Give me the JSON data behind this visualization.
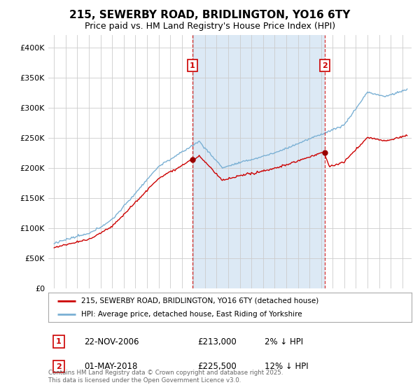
{
  "title": "215, SEWERBY ROAD, BRIDLINGTON, YO16 6TY",
  "subtitle": "Price paid vs. HM Land Registry's House Price Index (HPI)",
  "ylim": [
    0,
    420000
  ],
  "yticks": [
    0,
    50000,
    100000,
    150000,
    200000,
    250000,
    300000,
    350000,
    400000
  ],
  "ytick_labels": [
    "£0",
    "£50K",
    "£100K",
    "£150K",
    "£200K",
    "£250K",
    "£300K",
    "£350K",
    "£400K"
  ],
  "background_color": "#ffffff",
  "plot_bg_color": "#ffffff",
  "shade_color": "#dce9f5",
  "line_color_red": "#cc0000",
  "line_color_blue": "#7ab0d4",
  "grid_color": "#cccccc",
  "marker1_x": 2006.917,
  "marker1_y": 213000,
  "marker2_x": 2018.33,
  "marker2_y": 225500,
  "annotation1": {
    "label": "1",
    "date": "22-NOV-2006",
    "price": "£213,000",
    "pct": "2% ↓ HPI"
  },
  "annotation2": {
    "label": "2",
    "date": "01-MAY-2018",
    "price": "£225,500",
    "pct": "12% ↓ HPI"
  },
  "legend_label_red": "215, SEWERBY ROAD, BRIDLINGTON, YO16 6TY (detached house)",
  "legend_label_blue": "HPI: Average price, detached house, East Riding of Yorkshire",
  "footer": "Contains HM Land Registry data © Crown copyright and database right 2025.\nThis data is licensed under the Open Government Licence v3.0.",
  "title_fontsize": 11,
  "subtitle_fontsize": 9,
  "xstart": 1995.0,
  "xend": 2025.5,
  "xlim_left": 1994.5,
  "xlim_right": 2025.8
}
